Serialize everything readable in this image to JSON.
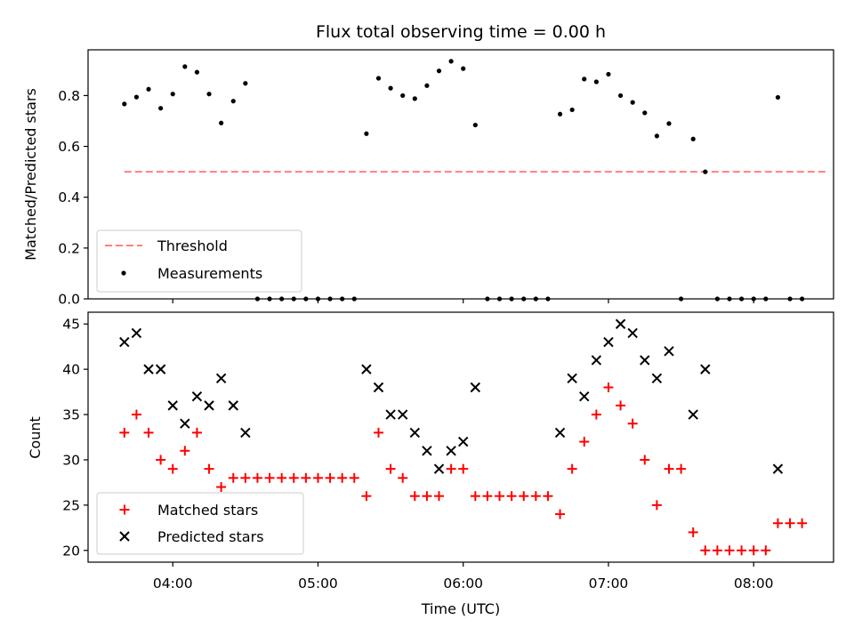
{
  "chart_data": [
    {
      "type": "scatter",
      "title": "Flux total observing time = 0.00 h",
      "xlabel": "",
      "ylabel": "Matched/Predicted stars",
      "xlim": [
        "03:25",
        "08:33"
      ],
      "ylim": [
        0,
        0.98
      ],
      "yticks": [
        0.0,
        0.2,
        0.4,
        0.6,
        0.8
      ],
      "ytick_labels": [
        "0.0",
        "0.2",
        "0.4",
        "0.6",
        "0.8"
      ],
      "xticks": [
        "04:00",
        "05:00",
        "06:00",
        "07:00",
        "08:00"
      ],
      "xtick_labels_visible": false,
      "legend": {
        "placement": "lower-left",
        "entries": [
          "Threshold",
          "Measurements"
        ]
      },
      "series": [
        {
          "name": "Threshold",
          "kind": "line",
          "style": "dashed",
          "color": "#ff7f7f",
          "x": [
            "03:40",
            "08:30"
          ],
          "y": [
            0.5,
            0.5
          ]
        },
        {
          "name": "Measurements",
          "kind": "scatter",
          "color": "#000000",
          "points": [
            [
              "03:40",
              0.767
            ],
            [
              "03:45",
              0.794
            ],
            [
              "03:50",
              0.825
            ],
            [
              "03:55",
              0.75
            ],
            [
              "04:00",
              0.806
            ],
            [
              "04:05",
              0.914
            ],
            [
              "04:10",
              0.892
            ],
            [
              "04:15",
              0.806
            ],
            [
              "04:20",
              0.692
            ],
            [
              "04:25",
              0.778
            ],
            [
              "04:30",
              0.848
            ],
            [
              "04:35",
              0.0
            ],
            [
              "04:40",
              0.0
            ],
            [
              "04:45",
              0.0
            ],
            [
              "04:50",
              0.0
            ],
            [
              "04:55",
              0.0
            ],
            [
              "05:00",
              0.0
            ],
            [
              "05:05",
              0.0
            ],
            [
              "05:10",
              0.0
            ],
            [
              "05:15",
              0.0
            ],
            [
              "05:20",
              0.65
            ],
            [
              "05:25",
              0.868
            ],
            [
              "05:30",
              0.829
            ],
            [
              "05:35",
              0.8
            ],
            [
              "05:40",
              0.788
            ],
            [
              "05:45",
              0.839
            ],
            [
              "05:50",
              0.897
            ],
            [
              "05:55",
              0.935
            ],
            [
              "06:00",
              0.906
            ],
            [
              "06:05",
              0.684
            ],
            [
              "06:10",
              0.0
            ],
            [
              "06:15",
              0.0
            ],
            [
              "06:20",
              0.0
            ],
            [
              "06:25",
              0.0
            ],
            [
              "06:30",
              0.0
            ],
            [
              "06:35",
              0.0
            ],
            [
              "06:40",
              0.727
            ],
            [
              "06:45",
              0.744
            ],
            [
              "06:50",
              0.865
            ],
            [
              "06:55",
              0.854
            ],
            [
              "07:00",
              0.884
            ],
            [
              "07:05",
              0.8
            ],
            [
              "07:10",
              0.773
            ],
            [
              "07:15",
              0.732
            ],
            [
              "07:20",
              0.641
            ],
            [
              "07:25",
              0.69
            ],
            [
              "07:30",
              0.0
            ],
            [
              "07:35",
              0.629
            ],
            [
              "07:40",
              0.5
            ],
            [
              "07:45",
              0.0
            ],
            [
              "07:50",
              0.0
            ],
            [
              "07:55",
              0.0
            ],
            [
              "08:00",
              0.0
            ],
            [
              "08:05",
              0.0
            ],
            [
              "08:10",
              0.793
            ],
            [
              "08:15",
              0.0
            ],
            [
              "08:20",
              0.0
            ]
          ]
        }
      ]
    },
    {
      "type": "scatter",
      "title": "",
      "xlabel": "Time (UTC)",
      "ylabel": "Count",
      "xlim": [
        "03:25",
        "08:33"
      ],
      "ylim": [
        18.7,
        46.3
      ],
      "yticks": [
        20,
        25,
        30,
        35,
        40,
        45
      ],
      "ytick_labels": [
        "20",
        "25",
        "30",
        "35",
        "40",
        "45"
      ],
      "xticks": [
        "04:00",
        "05:00",
        "06:00",
        "07:00",
        "08:00"
      ],
      "xtick_labels": [
        "04:00",
        "05:00",
        "06:00",
        "07:00",
        "08:00"
      ],
      "legend": {
        "placement": "lower-left",
        "entries": [
          "Matched stars",
          "Predicted stars"
        ]
      },
      "series": [
        {
          "name": "Matched stars",
          "marker": "+",
          "color": "#ff0000",
          "points": [
            [
              "03:40",
              33
            ],
            [
              "03:45",
              35
            ],
            [
              "03:50",
              33
            ],
            [
              "03:55",
              30
            ],
            [
              "04:00",
              29
            ],
            [
              "04:05",
              31
            ],
            [
              "04:10",
              33
            ],
            [
              "04:15",
              29
            ],
            [
              "04:20",
              27
            ],
            [
              "04:25",
              28
            ],
            [
              "04:30",
              28
            ],
            [
              "04:35",
              28
            ],
            [
              "04:40",
              28
            ],
            [
              "04:45",
              28
            ],
            [
              "04:50",
              28
            ],
            [
              "04:55",
              28
            ],
            [
              "05:00",
              28
            ],
            [
              "05:05",
              28
            ],
            [
              "05:10",
              28
            ],
            [
              "05:15",
              28
            ],
            [
              "05:20",
              26
            ],
            [
              "05:25",
              33
            ],
            [
              "05:30",
              29
            ],
            [
              "05:35",
              28
            ],
            [
              "05:40",
              26
            ],
            [
              "05:45",
              26
            ],
            [
              "05:50",
              26
            ],
            [
              "05:55",
              29
            ],
            [
              "06:00",
              29
            ],
            [
              "06:05",
              26
            ],
            [
              "06:10",
              26
            ],
            [
              "06:15",
              26
            ],
            [
              "06:20",
              26
            ],
            [
              "06:25",
              26
            ],
            [
              "06:30",
              26
            ],
            [
              "06:35",
              26
            ],
            [
              "06:40",
              24
            ],
            [
              "06:45",
              29
            ],
            [
              "06:50",
              32
            ],
            [
              "06:55",
              35
            ],
            [
              "07:00",
              38
            ],
            [
              "07:05",
              36
            ],
            [
              "07:10",
              34
            ],
            [
              "07:15",
              30
            ],
            [
              "07:20",
              25
            ],
            [
              "07:25",
              29
            ],
            [
              "07:30",
              29
            ],
            [
              "07:35",
              22
            ],
            [
              "07:40",
              20
            ],
            [
              "07:45",
              20
            ],
            [
              "07:50",
              20
            ],
            [
              "07:55",
              20
            ],
            [
              "08:00",
              20
            ],
            [
              "08:05",
              20
            ],
            [
              "08:10",
              23
            ],
            [
              "08:15",
              23
            ],
            [
              "08:20",
              23
            ]
          ]
        },
        {
          "name": "Predicted stars",
          "marker": "x",
          "color": "#000000",
          "points": [
            [
              "03:40",
              43
            ],
            [
              "03:45",
              44
            ],
            [
              "03:50",
              40
            ],
            [
              "03:55",
              40
            ],
            [
              "04:00",
              36
            ],
            [
              "04:05",
              34
            ],
            [
              "04:10",
              37
            ],
            [
              "04:15",
              36
            ],
            [
              "04:20",
              39
            ],
            [
              "04:25",
              36
            ],
            [
              "04:30",
              33
            ],
            [
              "05:20",
              40
            ],
            [
              "05:25",
              38
            ],
            [
              "05:30",
              35
            ],
            [
              "05:35",
              35
            ],
            [
              "05:40",
              33
            ],
            [
              "05:45",
              31
            ],
            [
              "05:50",
              29
            ],
            [
              "05:55",
              31
            ],
            [
              "06:00",
              32
            ],
            [
              "06:05",
              38
            ],
            [
              "06:40",
              33
            ],
            [
              "06:45",
              39
            ],
            [
              "06:50",
              37
            ],
            [
              "06:55",
              41
            ],
            [
              "07:00",
              43
            ],
            [
              "07:05",
              45
            ],
            [
              "07:10",
              44
            ],
            [
              "07:15",
              41
            ],
            [
              "07:20",
              39
            ],
            [
              "07:25",
              42
            ],
            [
              "07:35",
              35
            ],
            [
              "07:40",
              40
            ],
            [
              "08:10",
              29
            ]
          ]
        }
      ]
    }
  ]
}
